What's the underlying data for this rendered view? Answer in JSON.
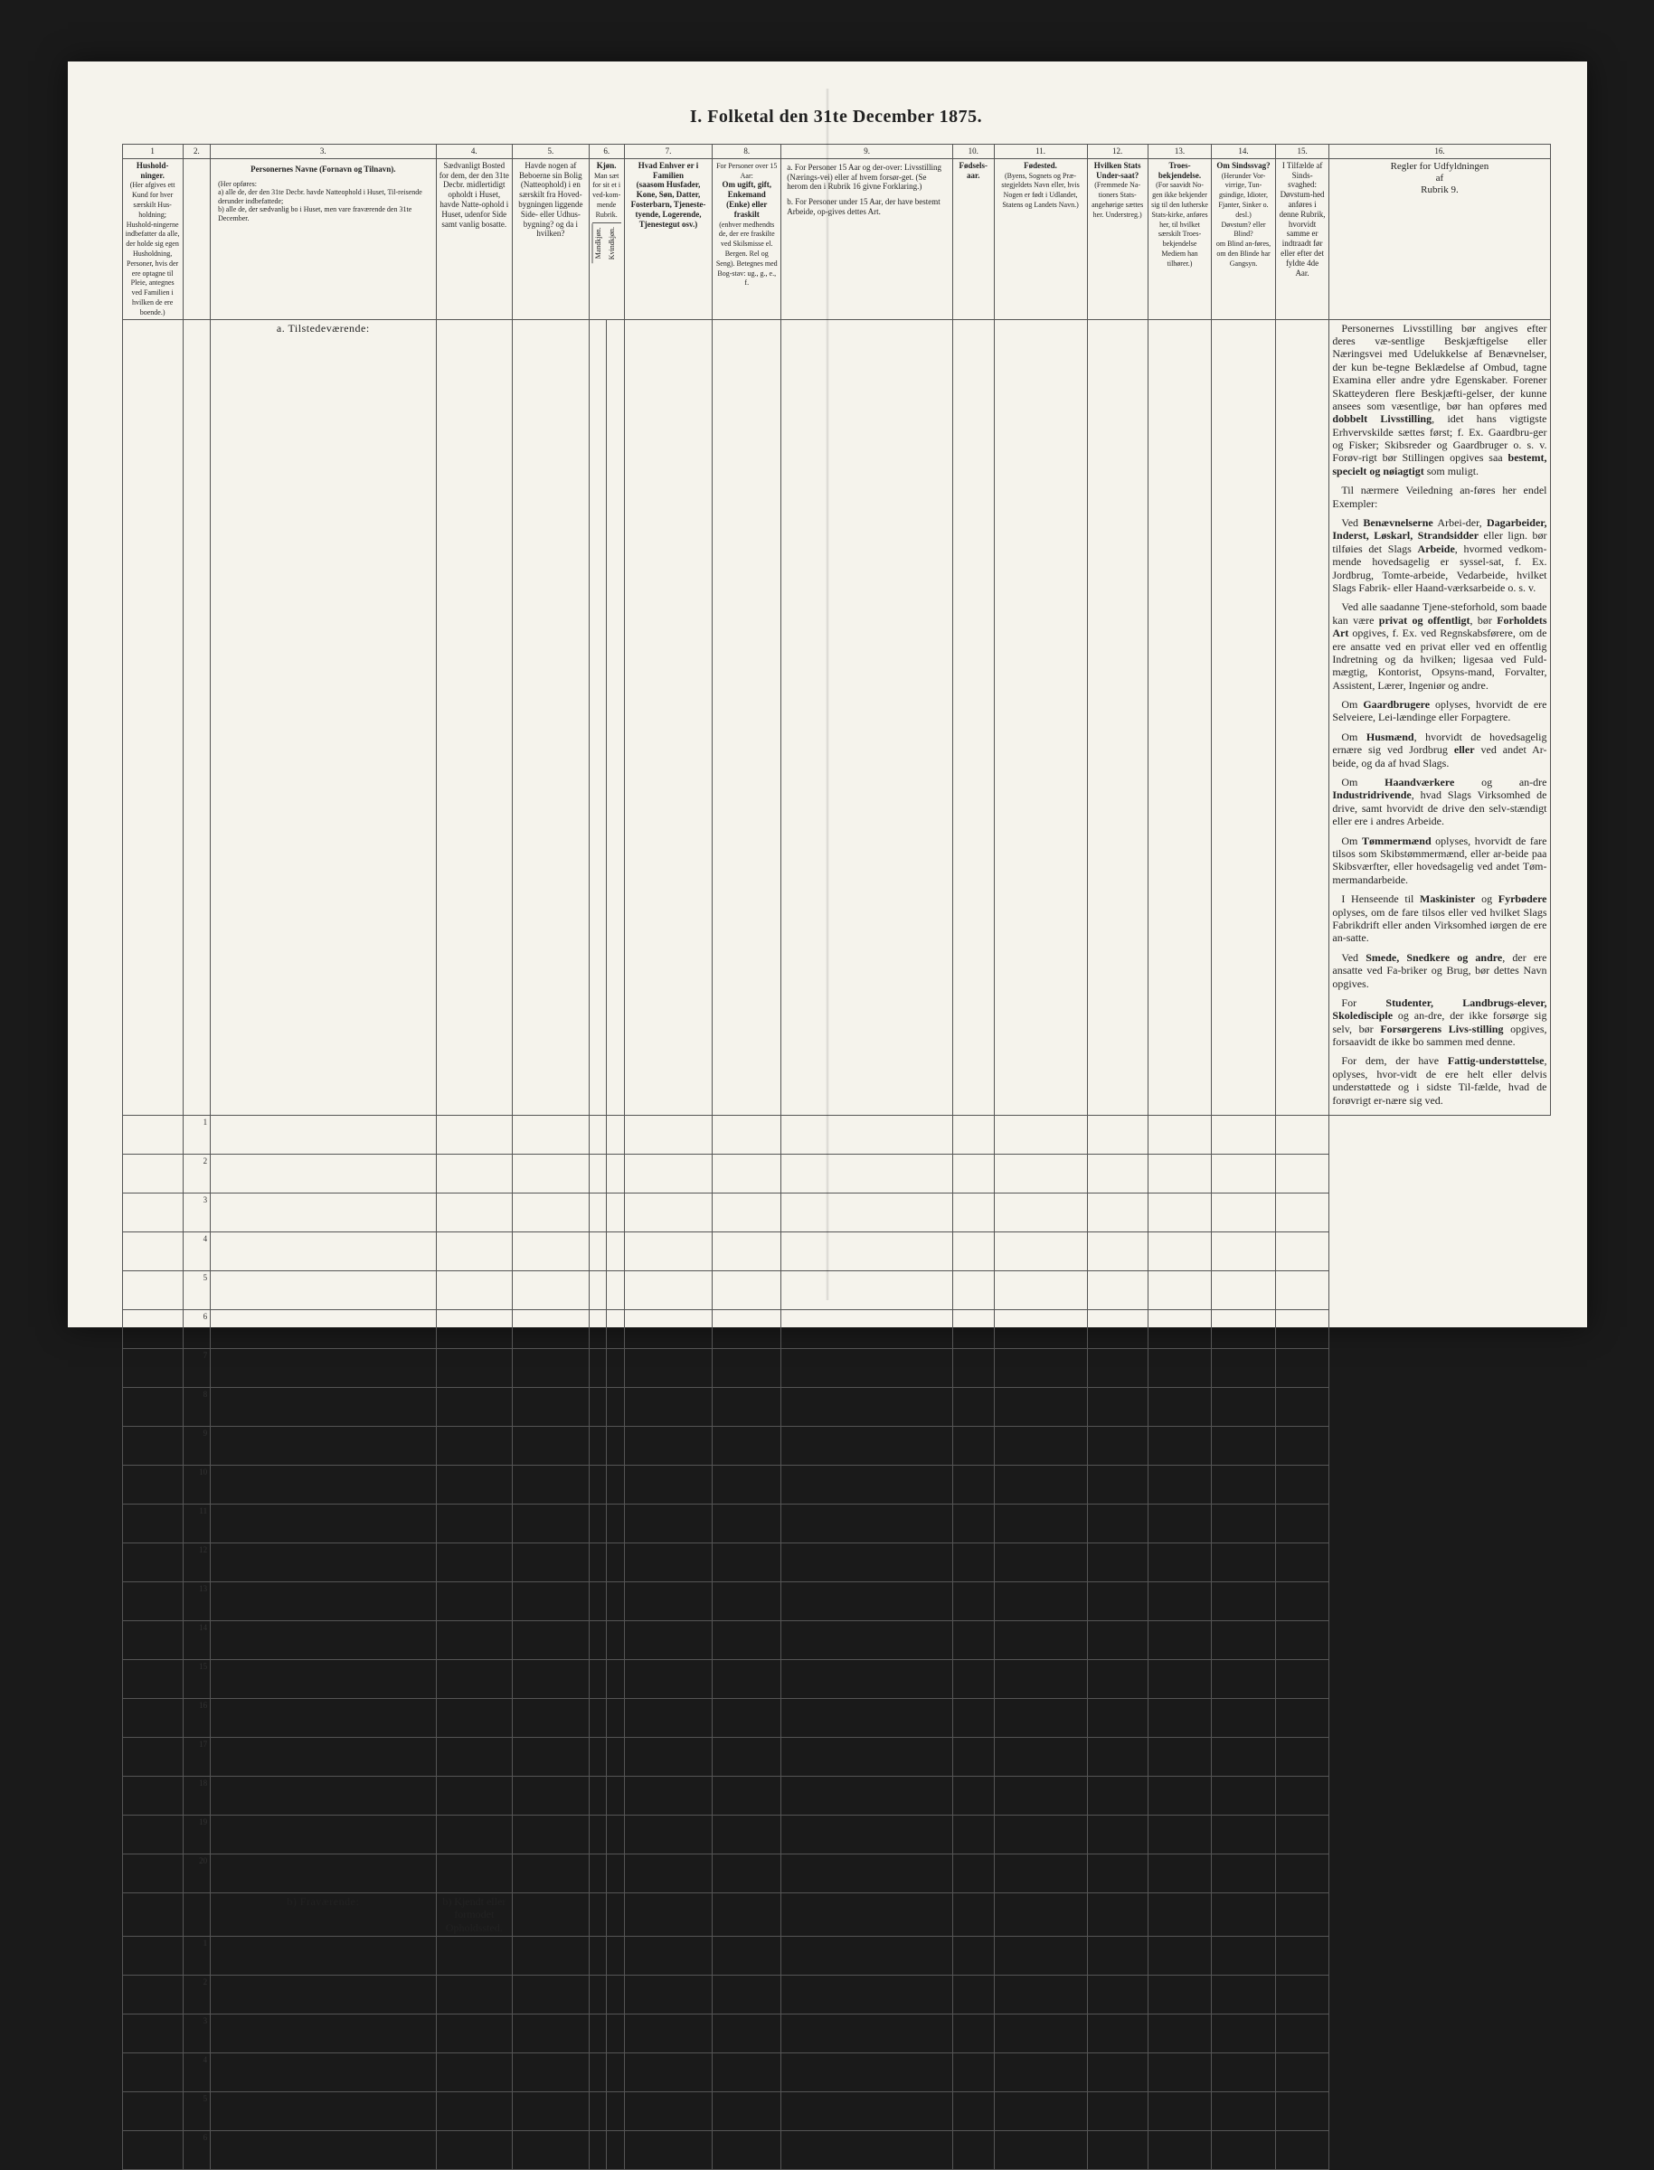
{
  "title": "I.  Folketal  den 31te December 1875.",
  "colnums": [
    "1",
    "2.",
    "3.",
    "4.",
    "5.",
    "6.",
    "7.",
    "8.",
    "9.",
    "10.",
    "11.",
    "12.",
    "13.",
    "14.",
    "15.",
    "16."
  ],
  "headers": {
    "c1": "Hushold-\nninger.",
    "c1_sub": "(Her afgives ett Kund for hver særskilt Hus-holdning; Hushold-ningerne indbefatter da alle, der holde sig egen Husholdning, Personer, hvis der ere optagne til Pleie, antegnes ved Familien i hvilken de ere boende.)",
    "c3_title": "Personernes Navne (Fornavn og Tilnavn).",
    "c3_sub": "(Her opføres:\na) alle de, der den 31te Decbr. havde Natteophold i Huset, Til-reisende derunder indbefattede;\nb) alle de, der sædvanlig bo i Huset, men vare fraværende den 31te December.",
    "c4": "Sædvanligt Bosted for dem, der den 31te Decbr. midlertidigt opholdt i Huset, havde Natte-ophold i Huset, udenfor Side samt vanlig bosatte.",
    "c5": "Havde nogen af Beboerne sin Bolig (Natteophold) i en særskilt fra Hoved-bygningen liggende Side- eller Udhus-bygning? og da i hvilken?",
    "c6_title": "Kjøn.",
    "c6_sub": "Man sæt for sit et i ved-kom-mende Rubrik.",
    "c6a": "Mandkjøn.",
    "c6b": "Kvindkjøn.",
    "c7": "Hvad Enhver er i Familien\n(saasom Husfader, Kone, Søn, Datter, Fosterbarn, Tjeneste-tyende, Logerende, Tjenestegut osv.)",
    "c8_top": "For Personer over 15 Aar:",
    "c8_title": "Om ugift, gift, Enkemand (Enke) eller fraskilt",
    "c8_sub": "(enhver medhendts de, der ere fraskilte ved Skilsmisse el. Bergen. Rel og Seng).\nBetegnes med Bog-stav: ug., g., e., f.",
    "c9_a": "a. For Personer 15 Aar og der-over: Livsstilling (Nærings-vei) eller af hvem forsør-get. (Se herom den i Rubrik 16 givne Forklaring.)",
    "c9_b": "b. For Personer under 15 Aar, der have bestemt Arbeide, op-gives dettes Art.",
    "c10": "Fødsels-aar.",
    "c11_title": "Fødested.",
    "c11_sub": "(Byens, Sognets og Præ-stegjeldets Navn eller, hvis Nogen er født i Udlandet, Statens og Landets Navn.)",
    "c12_title": "Hvilken Stats Under-saat?",
    "c12_sub": "(Fremmede Na-tioners Stats-angehørige sættes her.\nUnderstreg.)",
    "c13_title": "Troes-bekjendelse.",
    "c13_sub": "(For saavidt No-gen ikke bekjender sig til den lutherske Stats-kirke, anføres her, til hvilket særskilt Troes-bekjendelse Mediem han tilhører.)",
    "c14_title": "Om Sindssvag?",
    "c14_sub": "(Herunder Vor-virrige, Tun-gsindige, Idioter, Fjanter, Sinker o. desl.)\nDøvstum? eller Blind?\nom Blind an-føres, om den Blinde har Gangsyn.",
    "c15_title": "I Tilfælde af Sinds-svaghed: Døvstum-hed anføres i denne Rubrik, hvorvidt samme er indtraadt før eller efter det fyldte 4de Aar.",
    "c16_title": "Regler for Udfyldningen\naf\nRubrik 9."
  },
  "section_a": "a. Tilstedeværende:",
  "section_b": "b) Fraværende:",
  "section_b_col4": "b) Kjendt eller formodet Opholdssted.",
  "rows_a": [
    "1",
    "2",
    "3",
    "4",
    "5",
    "6",
    "7",
    "8",
    "9",
    "10",
    "11",
    "12",
    "13",
    "14",
    "15",
    "16",
    "17",
    "18",
    "19",
    "20"
  ],
  "rows_b": [
    "1",
    "2",
    "3",
    "4",
    "5",
    "6"
  ],
  "rules": [
    "Personernes Livsstilling bør angives efter deres væ-sentlige Beskjæftigelse eller Næringsvei med Udelukkelse af Benævnelser, der kun be-tegne Beklædelse af Ombud, tagne Examina eller andre ydre Egenskaber. Forener Skatteyderen flere Beskjæfti-gelser, der kunne ansees som væsentlige, bør han opføres med <b>dobbelt Livsstilling</b>, idet hans vigtigste Erhvervskilde sættes først; f. Ex. Gaardbru-ger og Fisker; Skibsreder og Gaardbruger o. s. v. Forøv-rigt bør Stillingen opgives saa <b>bestemt, specielt og nøiagtigt</b> som muligt.",
    "Til nærmere Veiledning an-føres her endel Exempler:",
    "Ved <b>Benævnelserne</b> Arbei-der, <b>Dagarbeider, Inderst, Løskarl, Strandsidder</b> eller lign. bør tilføies det Slags <b>Arbeide</b>, hvormed vedkom-mende hovedsagelig er syssel-sat, f. Ex. Jordbrug, Tomte-arbeide, Vedarbeide, hvilket Slags Fabrik- eller Haand-værksarbeide o. s. v.",
    "Ved alle saadanne Tjene-steforhold, som baade kan være <b>privat og offentligt</b>, bør <b>Forholdets Art</b> opgives, f. Ex. ved Regnskabsførere, om de ere ansatte ved en privat eller ved en offentlig Indretning og da hvilken; ligesaa ved Fuld-mægtig, Kontorist, Opsyns-mand, Forvalter, Assistent, Lærer, Ingeniør og andre.",
    "Om <b>Gaardbrugere</b> oplyses, hvorvidt de ere Selveiere, Lei-lændinge eller Forpagtere.",
    "Om <b>Husmænd</b>, hvorvidt de hovedsagelig ernære sig ved Jordbrug <b>eller</b> ved andet Ar-beide, og da af hvad Slags.",
    "Om <b>Haandværkere</b> og an-dre <b>Industridrivende</b>, hvad Slags Virksomhed de drive, samt hvorvidt de drive den selv-stændigt eller ere i andres Arbeide.",
    "Om <b>Tømmermænd</b> oplyses, hvorvidt de fare tilsos som Skibstømmermænd, eller ar-beide paa Skibsværfter, eller hovedsagelig ved andet Tøm-mermandarbeide.",
    "I Henseende til <b>Maskinister</b> og <b>Fyrbødere</b> oplyses, om de fare tilsos eller ved hvilket Slags Fabrikdrift eller anden Virksomhed iørgen de ere an-satte.",
    "Ved <b>Smede, Snedkere og andre</b>, der ere ansatte ved Fa-briker og Brug, bør dettes Navn opgives.",
    "For <b>Studenter, Landbrugs-elever, Skoledisciple</b> og an-dre, der ikke forsørge sig selv, bør <b>Forsørgerens Livs-stilling</b> opgives, forsaavidt de ikke bo sammen med denne.",
    "For dem, der have <b>Fattig-understøttelse</b>, oplyses, hvor-vidt de ere helt eller delvis understøttede og i sidste Til-fælde, hvad de forøvrigt er-nære sig ved."
  ],
  "colors": {
    "paper": "#f5f3ec",
    "ink": "#222222",
    "border": "#555555",
    "outer": "#1a1a1a"
  }
}
